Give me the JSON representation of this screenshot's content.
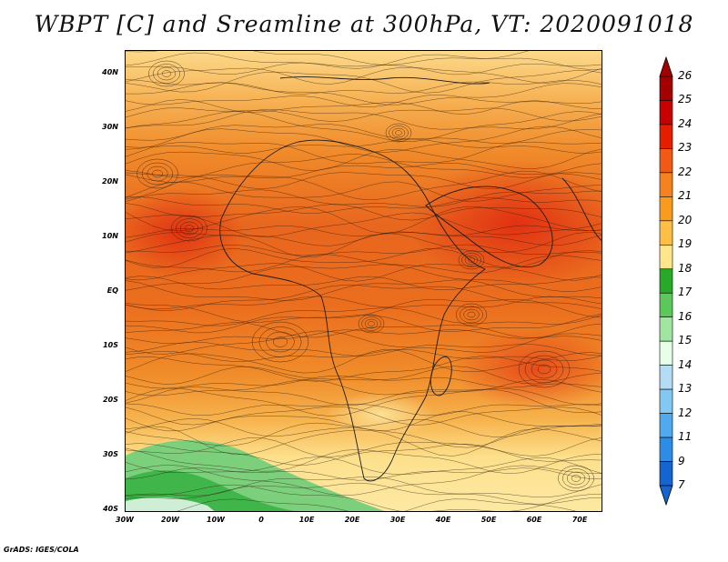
{
  "title": "WBPT [C] and Sreamline at 300hPa, VT: 2020091018",
  "credit": "GrADS: IGES/COLA",
  "latitude_labels": [
    "40N",
    "30N",
    "20N",
    "10N",
    "EQ",
    "10S",
    "20S",
    "30S",
    "40S"
  ],
  "longitude_labels": [
    "30W",
    "20W",
    "10W",
    "0",
    "10E",
    "20E",
    "30E",
    "40E",
    "50E",
    "60E",
    "70E"
  ],
  "colorbar": {
    "labels": [
      "26",
      "25",
      "24",
      "23",
      "22",
      "21",
      "20",
      "19",
      "18",
      "17",
      "16",
      "15",
      "14",
      "13",
      "12",
      "11",
      "9",
      "7"
    ],
    "colors": [
      "#a50000",
      "#c80000",
      "#e61e00",
      "#f05a14",
      "#f5821e",
      "#fa9b1e",
      "#ffbe46",
      "#ffe68c",
      "#28aa28",
      "#5ac85a",
      "#a0e6a0",
      "#e6ffe6",
      "#b4dcf5",
      "#82c8f5",
      "#50aaf0",
      "#2d8ce6",
      "#1464d2"
    ]
  }
}
